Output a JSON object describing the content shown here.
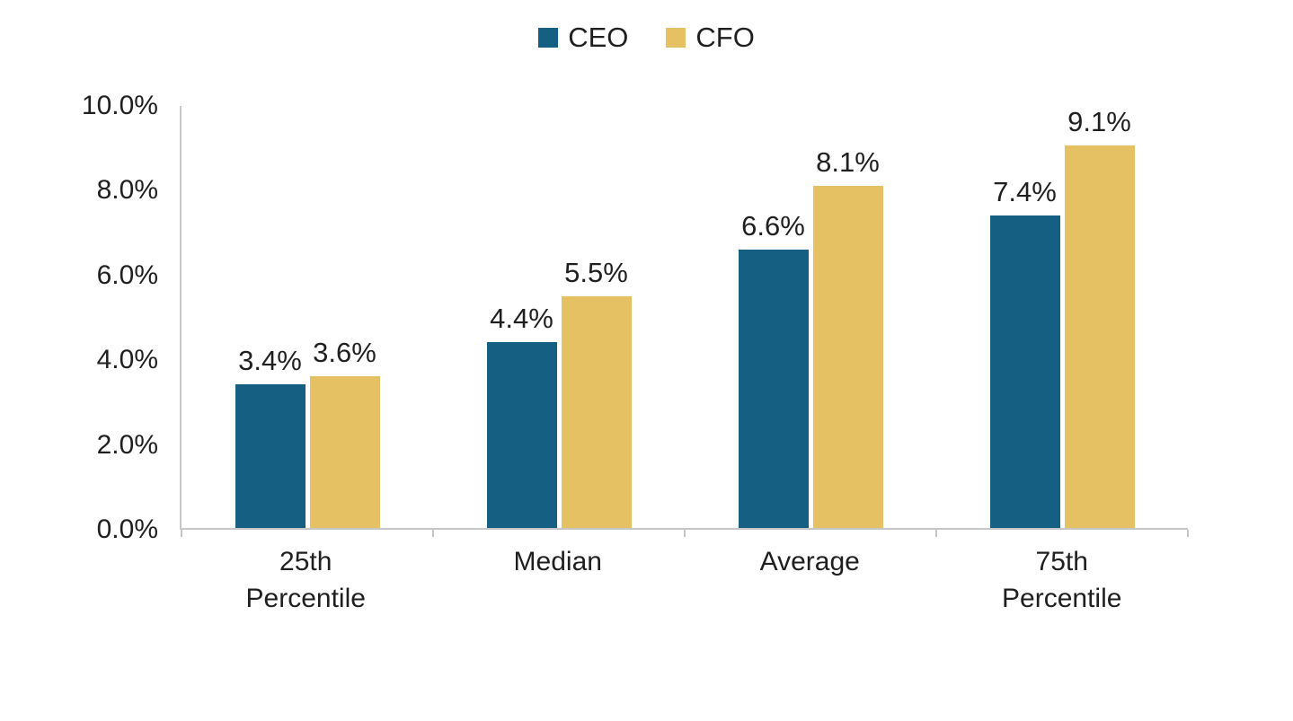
{
  "chart_data": {
    "type": "bar",
    "title": "",
    "categories": [
      "25th Percentile",
      "Median",
      "Average",
      "75th Percentile"
    ],
    "series": [
      {
        "name": "CEO",
        "color": "#156082",
        "values": [
          3.4,
          4.4,
          6.6,
          7.4
        ],
        "labels": [
          "3.4%",
          "4.4%",
          "6.6%",
          "7.4%"
        ]
      },
      {
        "name": "CFO",
        "color": "#e6c163",
        "values": [
          3.6,
          5.5,
          8.1,
          9.1
        ],
        "labels": [
          "3.6%",
          "5.5%",
          "8.1%",
          "9.1%"
        ]
      }
    ],
    "ylim": [
      0,
      10
    ],
    "yticks": [
      {
        "value": 0,
        "label": "0.0%"
      },
      {
        "value": 2,
        "label": "2.0%"
      },
      {
        "value": 4,
        "label": "4.0%"
      },
      {
        "value": 6,
        "label": "6.0%"
      },
      {
        "value": 8,
        "label": "8.0%"
      },
      {
        "value": 10,
        "label": "10.0%"
      }
    ],
    "legend_position": "top",
    "grid": false,
    "axis_color": "#c6c6c6",
    "text_color": "#1f1f1f"
  }
}
